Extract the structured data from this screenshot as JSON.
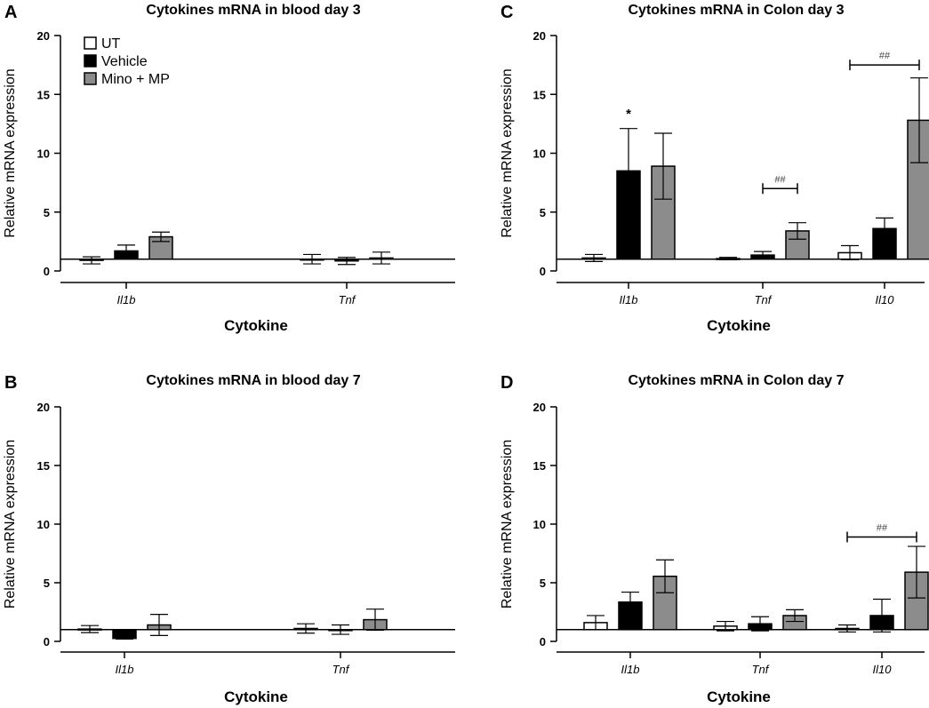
{
  "legend": {
    "entries": [
      {
        "name": "UT",
        "fill": "#ffffff"
      },
      {
        "name": "Vehicle",
        "fill": "#000000"
      },
      {
        "name": "Mino + MP",
        "fill": "#8c8c8c"
      }
    ]
  },
  "colors": {
    "UT": "#ffffff",
    "Vehicle": "#000000",
    "Mino + MP": "#8c8c8c",
    "stroke": "#000000"
  },
  "chart_data": [
    {
      "panel": "A",
      "type": "bar",
      "title": "Cytokines mRNA in blood day 3",
      "xlabel": "Cytokine",
      "ylabel": "Relative mRNA expression",
      "ylim": [
        0,
        20
      ],
      "yticks": [
        "0",
        "5",
        "10",
        "15",
        "20"
      ],
      "baseline": 1,
      "categories": [
        "Il1b",
        "Tnf"
      ],
      "series": [
        {
          "name": "UT",
          "values": [
            0.9,
            1.0
          ],
          "errors": [
            0.3,
            0.4
          ]
        },
        {
          "name": "Vehicle",
          "values": [
            1.7,
            0.85
          ],
          "errors": [
            0.5,
            0.3
          ]
        },
        {
          "name": "Mino + MP",
          "values": [
            2.9,
            1.1
          ],
          "errors": [
            0.4,
            0.5
          ]
        }
      ],
      "annotations": []
    },
    {
      "panel": "B",
      "type": "bar",
      "title": "Cytokines mRNA in blood day 7",
      "xlabel": "Cytokine",
      "ylabel": "Relative mRNA expression",
      "ylim": [
        0,
        20
      ],
      "yticks": [
        "0",
        "5",
        "10",
        "15",
        "20"
      ],
      "baseline": 1,
      "categories": [
        "Il1b",
        "Tnf"
      ],
      "series": [
        {
          "name": "UT",
          "values": [
            1.05,
            1.1
          ],
          "errors": [
            0.3,
            0.4
          ]
        },
        {
          "name": "Vehicle",
          "values": [
            0.25,
            1.0
          ],
          "errors": [
            0.05,
            0.4
          ]
        },
        {
          "name": "Mino + MP",
          "values": [
            1.4,
            1.85
          ],
          "errors": [
            0.9,
            0.9
          ]
        }
      ],
      "annotations": []
    },
    {
      "panel": "C",
      "type": "bar",
      "title": "Cytokines mRNA in Colon day 3",
      "xlabel": "Cytokine",
      "ylabel": "Relative mRNA expression",
      "ylim": [
        0,
        20
      ],
      "yticks": [
        "0",
        "5",
        "10",
        "15",
        "20"
      ],
      "baseline": 1,
      "categories": [
        "Il1b",
        "Tnf",
        "Il10"
      ],
      "series": [
        {
          "name": "UT",
          "values": [
            1.1,
            1.05,
            1.55
          ],
          "errors": [
            0.3,
            0.1,
            0.6
          ]
        },
        {
          "name": "Vehicle",
          "values": [
            8.5,
            1.35,
            3.6
          ],
          "errors": [
            3.6,
            0.3,
            0.9
          ]
        },
        {
          "name": "Mino + MP",
          "values": [
            8.9,
            3.4,
            12.8
          ],
          "errors": [
            2.8,
            0.7,
            3.6
          ]
        }
      ],
      "annotations": [
        {
          "type": "star",
          "text": "*",
          "category": 0,
          "series": 1,
          "y": 13.0
        },
        {
          "type": "bracket",
          "text": "##",
          "category": 1,
          "from": 1,
          "to": 2,
          "y": 7.0
        },
        {
          "type": "bracket",
          "text": "##",
          "category": 2,
          "from": 0,
          "to": 2,
          "y": 17.5
        }
      ]
    },
    {
      "panel": "D",
      "type": "bar",
      "title": "Cytokines mRNA in Colon day 7",
      "xlabel": "Cytokine",
      "ylabel": "Relative mRNA expression",
      "ylim": [
        0,
        20
      ],
      "yticks": [
        "0",
        "5",
        "10",
        "15",
        "20"
      ],
      "baseline": 1,
      "categories": [
        "Il1b",
        "Tnf",
        "Il10"
      ],
      "series": [
        {
          "name": "UT",
          "values": [
            1.6,
            1.3,
            1.1
          ],
          "errors": [
            0.6,
            0.4,
            0.3
          ]
        },
        {
          "name": "Vehicle",
          "values": [
            3.35,
            1.5,
            2.2
          ],
          "errors": [
            0.85,
            0.6,
            1.4
          ]
        },
        {
          "name": "Mino + MP",
          "values": [
            5.55,
            2.2,
            5.9
          ],
          "errors": [
            1.4,
            0.5,
            2.2
          ]
        }
      ],
      "annotations": [
        {
          "type": "bracket",
          "text": "##",
          "category": 2,
          "from": 0,
          "to": 2,
          "y": 8.9
        }
      ]
    }
  ]
}
